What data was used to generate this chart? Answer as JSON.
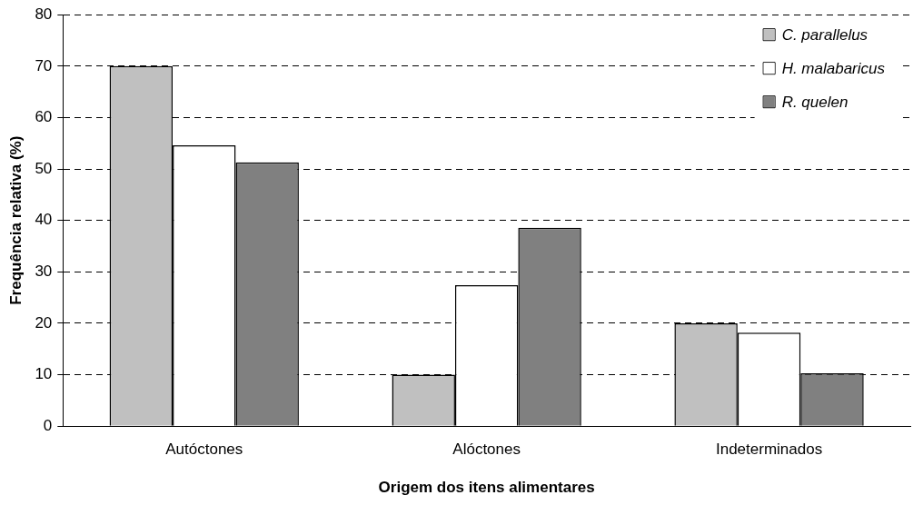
{
  "chart_data": {
    "type": "bar",
    "xlabel": "Origem dos itens alimentares",
    "ylabel": "Frequência relativa (%)",
    "categories": [
      "Autóctones",
      "Alóctones",
      "Indeterminados"
    ],
    "series": [
      {
        "name": "C. parallelus",
        "color": "#c0c0c0",
        "values": [
          70,
          10,
          20
        ]
      },
      {
        "name": "H. malabaricus",
        "color": "#ffffff",
        "values": [
          54.6,
          27.4,
          18.2
        ]
      },
      {
        "name": "R. quelen",
        "color": "#808080",
        "values": [
          51.3,
          38.6,
          10.3
        ]
      }
    ],
    "ylim": [
      0,
      80
    ],
    "yticks": [
      0,
      10,
      20,
      30,
      40,
      50,
      60,
      70,
      80
    ],
    "grid": "y",
    "legend": "top right"
  }
}
